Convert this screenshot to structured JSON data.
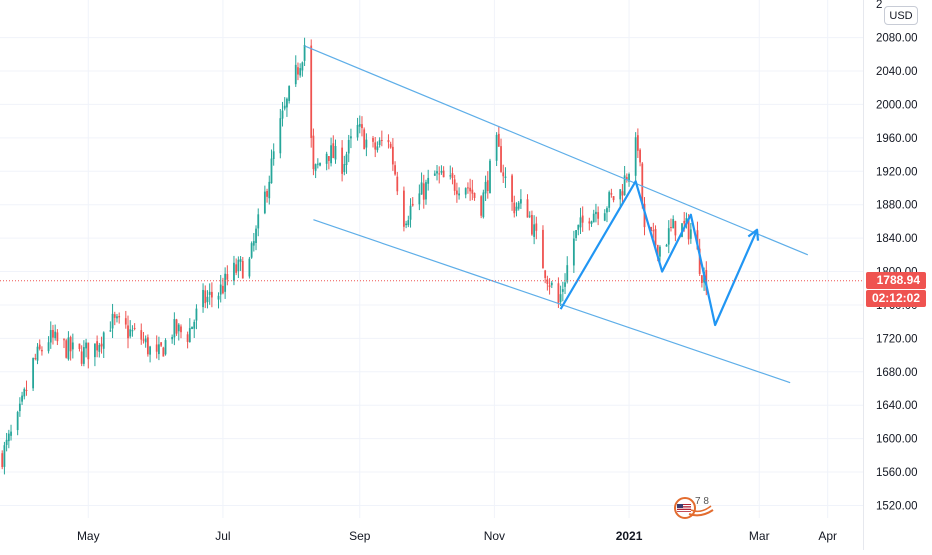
{
  "chart_data": {
    "type": "candlestick",
    "currency": "USD",
    "y_ticks": [
      "1520.00",
      "1560.00",
      "1600.00",
      "1640.00",
      "1680.00",
      "1720.00",
      "1760.00",
      "1800.00",
      "1840.00",
      "1880.00",
      "1920.00",
      "1960.00",
      "2000.00",
      "2040.00",
      "2080.00",
      "2"
    ],
    "ylim": [
      1505,
      2125
    ],
    "x_ticks": [
      "May",
      "Jul",
      "Sep",
      "Nov",
      "2021",
      "Mar",
      "Apr"
    ],
    "x_tick_dates": [
      "2020-05-01",
      "2020-07-01",
      "2020-09-01",
      "2020-11-01",
      "2021-01-01",
      "2021-03-01",
      "2021-04-01"
    ],
    "xlim": [
      "2020-03-22",
      "2021-04-17"
    ],
    "last_price": "1788.94",
    "countdown": "02:12:02",
    "price_path": [
      [
        "2020-03-23",
        1580
      ],
      [
        "2020-03-30",
        1620
      ],
      [
        "2020-04-06",
        1690
      ],
      [
        "2020-04-13",
        1720
      ],
      [
        "2020-04-20",
        1710
      ],
      [
        "2020-04-27",
        1700
      ],
      [
        "2020-05-04",
        1710
      ],
      [
        "2020-05-11",
        1740
      ],
      [
        "2020-05-18",
        1730
      ],
      [
        "2020-05-25",
        1720
      ],
      [
        "2020-06-01",
        1695
      ],
      [
        "2020-06-08",
        1730
      ],
      [
        "2020-06-15",
        1725
      ],
      [
        "2020-06-22",
        1765
      ],
      [
        "2020-06-29",
        1775
      ],
      [
        "2020-07-06",
        1800
      ],
      [
        "2020-07-13",
        1810
      ],
      [
        "2020-07-20",
        1890
      ],
      [
        "2020-07-27",
        1975
      ],
      [
        "2020-08-03",
        2035
      ],
      [
        "2020-08-07",
        2072
      ],
      [
        "2020-08-11",
        1915
      ],
      [
        "2020-08-17",
        1945
      ],
      [
        "2020-08-24",
        1930
      ],
      [
        "2020-08-31",
        1970
      ],
      [
        "2020-09-07",
        1945
      ],
      [
        "2020-09-14",
        1960
      ],
      [
        "2020-09-21",
        1865
      ],
      [
        "2020-09-28",
        1890
      ],
      [
        "2020-10-05",
        1915
      ],
      [
        "2020-10-12",
        1905
      ],
      [
        "2020-10-19",
        1905
      ],
      [
        "2020-10-26",
        1880
      ],
      [
        "2020-11-02",
        1950
      ],
      [
        "2020-11-09",
        1880
      ],
      [
        "2020-11-16",
        1875
      ],
      [
        "2020-11-23",
        1810
      ],
      [
        "2020-11-30",
        1760
      ],
      [
        "2020-12-07",
        1840
      ],
      [
        "2020-12-14",
        1870
      ],
      [
        "2020-12-21",
        1880
      ],
      [
        "2020-12-28",
        1895
      ],
      [
        "2021-01-05",
        1955
      ],
      [
        "2021-01-08",
        1845
      ],
      [
        "2021-01-15",
        1830
      ],
      [
        "2021-01-22",
        1855
      ],
      [
        "2021-01-29",
        1850
      ],
      [
        "2021-02-03",
        1800
      ],
      [
        "2021-02-05",
        1790
      ]
    ],
    "trend_lines": [
      {
        "from": [
          "2020-08-07",
          2070
        ],
        "to": [
          "2021-03-23",
          1820
        ]
      },
      {
        "from": [
          "2020-08-11",
          1862
        ],
        "to": [
          "2021-03-15",
          1667
        ]
      }
    ],
    "projection_path": [
      [
        "2020-12-01",
        1755
      ],
      [
        "2021-01-04",
        1908
      ],
      [
        "2021-01-16",
        1800
      ],
      [
        "2021-01-29",
        1868
      ],
      [
        "2021-02-09",
        1736
      ],
      [
        "2021-02-28",
        1850
      ]
    ],
    "grid": true
  },
  "logo": {
    "text": "7  8"
  }
}
